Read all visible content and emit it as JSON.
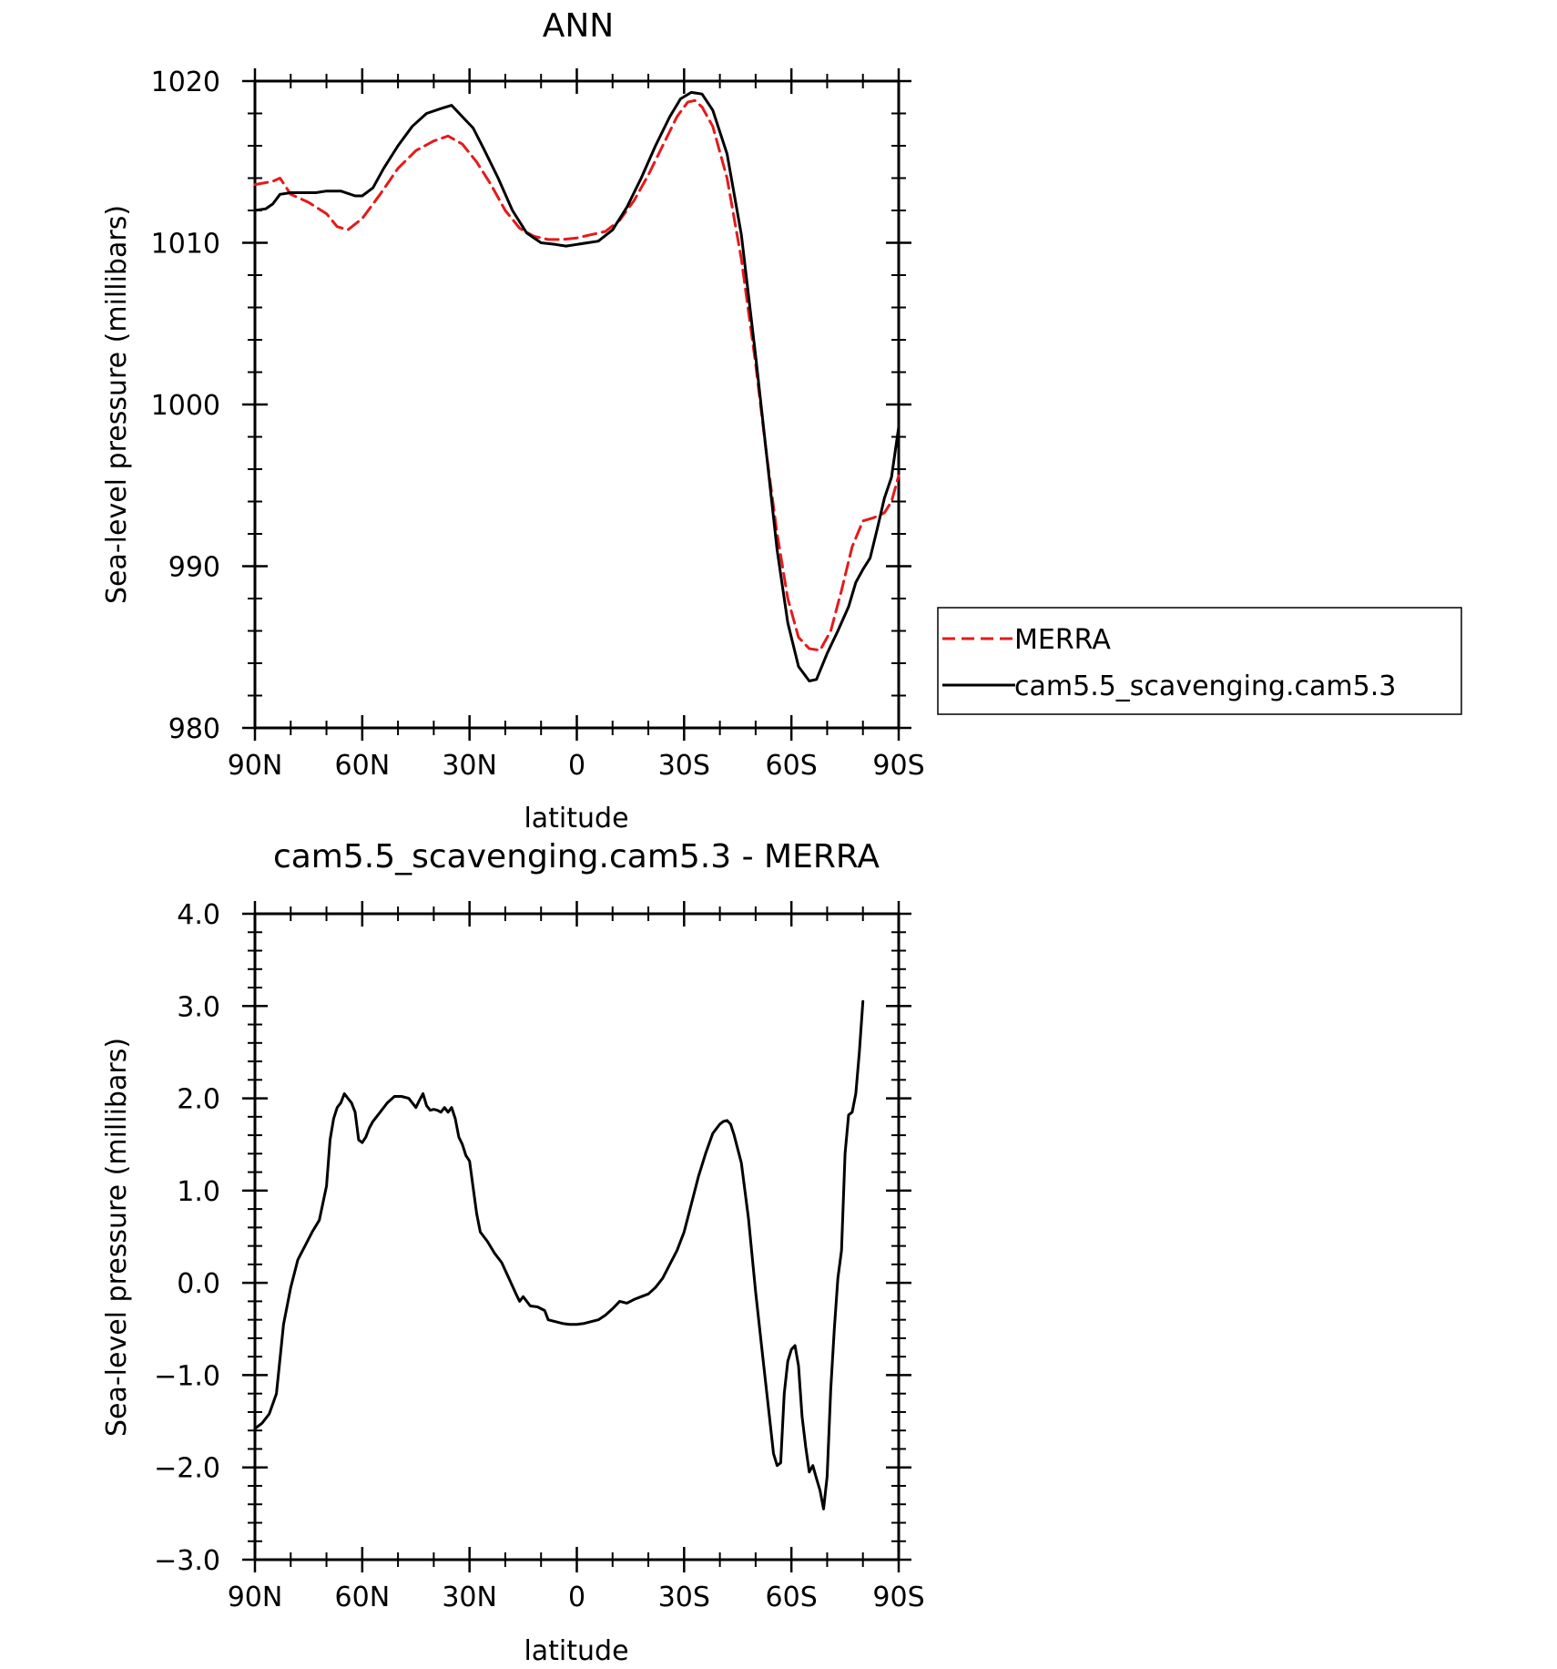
{
  "chart_data": [
    {
      "type": "line",
      "title": "ANN",
      "xlabel": "latitude",
      "ylabel": "Sea-level pressure (millibars)",
      "xlim": [
        90,
        -90
      ],
      "ylim": [
        980,
        1020
      ],
      "xticks": [
        {
          "value": 90,
          "label": "90N"
        },
        {
          "value": 60,
          "label": "60N"
        },
        {
          "value": 30,
          "label": "30N"
        },
        {
          "value": 0,
          "label": "0"
        },
        {
          "value": -30,
          "label": "30S"
        },
        {
          "value": -60,
          "label": "60S"
        },
        {
          "value": -90,
          "label": "90S"
        }
      ],
      "yticks": [
        {
          "value": 1020,
          "label": "1020"
        },
        {
          "value": 1010,
          "label": "1010"
        },
        {
          "value": 1000,
          "label": "1000"
        },
        {
          "value": 990,
          "label": "990"
        },
        {
          "value": 980,
          "label": "980"
        }
      ],
      "legend": {
        "position": "right",
        "entries": [
          "MERRA",
          "cam5.5_scavenging.cam5.3"
        ]
      },
      "series": [
        {
          "name": "MERRA",
          "color": "#e41a1c",
          "dash": "dashed",
          "points": [
            [
              90,
              1013.6
            ],
            [
              85,
              1013.8
            ],
            [
              83,
              1014.0
            ],
            [
              80,
              1013.0
            ],
            [
              75,
              1012.5
            ],
            [
              70,
              1011.8
            ],
            [
              67,
              1011.0
            ],
            [
              64,
              1010.8
            ],
            [
              60,
              1011.5
            ],
            [
              55,
              1013.0
            ],
            [
              50,
              1014.6
            ],
            [
              45,
              1015.7
            ],
            [
              40,
              1016.3
            ],
            [
              36,
              1016.6
            ],
            [
              32,
              1016.1
            ],
            [
              28,
              1015.0
            ],
            [
              24,
              1013.6
            ],
            [
              20,
              1012.0
            ],
            [
              16,
              1010.9
            ],
            [
              12,
              1010.4
            ],
            [
              8,
              1010.2
            ],
            [
              4,
              1010.2
            ],
            [
              0,
              1010.3
            ],
            [
              -4,
              1010.5
            ],
            [
              -8,
              1010.7
            ],
            [
              -12,
              1011.4
            ],
            [
              -16,
              1012.6
            ],
            [
              -20,
              1014.2
            ],
            [
              -24,
              1016.0
            ],
            [
              -28,
              1017.8
            ],
            [
              -31,
              1018.7
            ],
            [
              -33,
              1018.8
            ],
            [
              -35,
              1018.4
            ],
            [
              -38,
              1017.2
            ],
            [
              -42,
              1014.0
            ],
            [
              -46,
              1009.0
            ],
            [
              -50,
              1002.5
            ],
            [
              -53,
              997.0
            ],
            [
              -56,
              992.0
            ],
            [
              -59,
              988.0
            ],
            [
              -62,
              985.6
            ],
            [
              -65,
              984.9
            ],
            [
              -68,
              984.8
            ],
            [
              -71,
              986.0
            ],
            [
              -74,
              988.5
            ],
            [
              -77,
              991.2
            ],
            [
              -80,
              992.8
            ],
            [
              -83,
              993.0
            ],
            [
              -86,
              993.3
            ],
            [
              -88,
              994.0
            ],
            [
              -90,
              995.6
            ]
          ]
        },
        {
          "name": "cam5.5_scavenging.cam5.3",
          "color": "#000000",
          "dash": "solid",
          "points": [
            [
              90,
              1012.0
            ],
            [
              87,
              1012.1
            ],
            [
              85,
              1012.4
            ],
            [
              83,
              1013.0
            ],
            [
              80,
              1013.1
            ],
            [
              77,
              1013.1
            ],
            [
              73,
              1013.1
            ],
            [
              70,
              1013.2
            ],
            [
              66,
              1013.2
            ],
            [
              62,
              1012.9
            ],
            [
              60,
              1012.9
            ],
            [
              57,
              1013.4
            ],
            [
              54,
              1014.6
            ],
            [
              50,
              1016.0
            ],
            [
              46,
              1017.2
            ],
            [
              42,
              1018.0
            ],
            [
              38,
              1018.3
            ],
            [
              35,
              1018.5
            ],
            [
              32,
              1017.8
            ],
            [
              29,
              1017.1
            ],
            [
              26,
              1015.8
            ],
            [
              22,
              1014.0
            ],
            [
              18,
              1012.0
            ],
            [
              14,
              1010.6
            ],
            [
              10,
              1010.0
            ],
            [
              6,
              1009.9
            ],
            [
              3,
              1009.8
            ],
            [
              0,
              1009.9
            ],
            [
              -3,
              1010.0
            ],
            [
              -6,
              1010.1
            ],
            [
              -10,
              1010.8
            ],
            [
              -14,
              1012.2
            ],
            [
              -18,
              1014.0
            ],
            [
              -22,
              1016.0
            ],
            [
              -26,
              1017.8
            ],
            [
              -29,
              1018.9
            ],
            [
              -32,
              1019.3
            ],
            [
              -35,
              1019.2
            ],
            [
              -38,
              1018.2
            ],
            [
              -42,
              1015.5
            ],
            [
              -46,
              1010.5
            ],
            [
              -50,
              1003.0
            ],
            [
              -53,
              997.0
            ],
            [
              -56,
              991.0
            ],
            [
              -59,
              986.5
            ],
            [
              -62,
              983.8
            ],
            [
              -65,
              982.9
            ],
            [
              -67,
              983.0
            ],
            [
              -70,
              984.6
            ],
            [
              -73,
              986.0
            ],
            [
              -76,
              987.5
            ],
            [
              -78,
              989.0
            ],
            [
              -80,
              989.8
            ],
            [
              -82,
              990.5
            ],
            [
              -84,
              992.3
            ],
            [
              -86,
              994.2
            ],
            [
              -88,
              995.5
            ],
            [
              -90,
              998.6
            ]
          ]
        }
      ]
    },
    {
      "type": "line",
      "title": "cam5.5_scavenging.cam5.3 - MERRA",
      "xlabel": "latitude",
      "ylabel": "Sea-level pressure (millibars)",
      "xlim": [
        90,
        -90
      ],
      "ylim": [
        -3.0,
        4.0
      ],
      "xticks": [
        {
          "value": 90,
          "label": "90N"
        },
        {
          "value": 60,
          "label": "60N"
        },
        {
          "value": 30,
          "label": "30N"
        },
        {
          "value": 0,
          "label": "0"
        },
        {
          "value": -30,
          "label": "30S"
        },
        {
          "value": -60,
          "label": "60S"
        },
        {
          "value": -90,
          "label": "90S"
        }
      ],
      "yticks": [
        {
          "value": 4.0,
          "label": "4.0"
        },
        {
          "value": 3.0,
          "label": "3.0"
        },
        {
          "value": 2.0,
          "label": "2.0"
        },
        {
          "value": 1.0,
          "label": "1.0"
        },
        {
          "value": 0.0,
          "label": "0.0"
        },
        {
          "value": -1.0,
          "label": "−1.0"
        },
        {
          "value": -2.0,
          "label": "−2.0"
        },
        {
          "value": -3.0,
          "label": "−3.0"
        }
      ],
      "series": [
        {
          "color": "#000000",
          "dash": "solid",
          "points": [
            [
              90,
              -1.58
            ],
            [
              88,
              -1.52
            ],
            [
              86,
              -1.42
            ],
            [
              84,
              -1.2
            ],
            [
              82,
              -0.45
            ],
            [
              80,
              -0.05
            ],
            [
              78,
              0.25
            ],
            [
              76,
              0.4
            ],
            [
              74,
              0.55
            ],
            [
              72,
              0.68
            ],
            [
              70,
              1.05
            ],
            [
              69,
              1.55
            ],
            [
              68,
              1.78
            ],
            [
              67,
              1.9
            ],
            [
              66,
              1.95
            ],
            [
              65,
              2.05
            ],
            [
              64,
              2.0
            ],
            [
              63,
              1.95
            ],
            [
              62,
              1.85
            ],
            [
              61,
              1.55
            ],
            [
              60,
              1.52
            ],
            [
              59,
              1.58
            ],
            [
              58,
              1.68
            ],
            [
              57,
              1.75
            ],
            [
              55,
              1.85
            ],
            [
              53,
              1.95
            ],
            [
              51,
              2.02
            ],
            [
              49,
              2.02
            ],
            [
              47,
              2.0
            ],
            [
              45,
              1.9
            ],
            [
              44,
              1.98
            ],
            [
              43,
              2.05
            ],
            [
              42,
              1.92
            ],
            [
              41,
              1.87
            ],
            [
              40,
              1.88
            ],
            [
              39,
              1.87
            ],
            [
              38,
              1.85
            ],
            [
              37,
              1.9
            ],
            [
              36,
              1.85
            ],
            [
              35,
              1.9
            ],
            [
              34,
              1.78
            ],
            [
              33,
              1.58
            ],
            [
              32,
              1.5
            ],
            [
              31,
              1.38
            ],
            [
              30,
              1.32
            ],
            [
              28,
              0.75
            ],
            [
              27,
              0.55
            ],
            [
              25,
              0.45
            ],
            [
              23,
              0.32
            ],
            [
              21,
              0.22
            ],
            [
              19,
              0.05
            ],
            [
              17,
              -0.12
            ],
            [
              16,
              -0.2
            ],
            [
              15,
              -0.15
            ],
            [
              13,
              -0.25
            ],
            [
              11,
              -0.26
            ],
            [
              9,
              -0.3
            ],
            [
              8,
              -0.4
            ],
            [
              6,
              -0.42
            ],
            [
              4,
              -0.44
            ],
            [
              2,
              -0.45
            ],
            [
              0,
              -0.45
            ],
            [
              -2,
              -0.44
            ],
            [
              -4,
              -0.42
            ],
            [
              -6,
              -0.4
            ],
            [
              -8,
              -0.35
            ],
            [
              -10,
              -0.28
            ],
            [
              -12,
              -0.2
            ],
            [
              -14,
              -0.22
            ],
            [
              -16,
              -0.18
            ],
            [
              -18,
              -0.15
            ],
            [
              -20,
              -0.12
            ],
            [
              -22,
              -0.05
            ],
            [
              -24,
              0.05
            ],
            [
              -26,
              0.2
            ],
            [
              -28,
              0.35
            ],
            [
              -30,
              0.55
            ],
            [
              -32,
              0.85
            ],
            [
              -34,
              1.15
            ],
            [
              -36,
              1.4
            ],
            [
              -38,
              1.62
            ],
            [
              -40,
              1.72
            ],
            [
              -41,
              1.75
            ],
            [
              -42,
              1.76
            ],
            [
              -43,
              1.72
            ],
            [
              -44,
              1.6
            ],
            [
              -46,
              1.3
            ],
            [
              -48,
              0.7
            ],
            [
              -50,
              -0.1
            ],
            [
              -52,
              -0.8
            ],
            [
              -54,
              -1.5
            ],
            [
              -55,
              -1.85
            ],
            [
              -56,
              -1.98
            ],
            [
              -57,
              -1.95
            ],
            [
              -58,
              -1.2
            ],
            [
              -59,
              -0.85
            ],
            [
              -60,
              -0.72
            ],
            [
              -61,
              -0.68
            ],
            [
              -62,
              -0.9
            ],
            [
              -63,
              -1.45
            ],
            [
              -64,
              -1.78
            ],
            [
              -65,
              -2.05
            ],
            [
              -66,
              -1.98
            ],
            [
              -67,
              -2.12
            ],
            [
              -68,
              -2.25
            ],
            [
              -69,
              -2.45
            ],
            [
              -70,
              -2.1
            ],
            [
              -71,
              -1.15
            ],
            [
              -72,
              -0.5
            ],
            [
              -73,
              0.05
            ],
            [
              -74,
              0.35
            ],
            [
              -75,
              1.4
            ],
            [
              -76,
              1.82
            ],
            [
              -77,
              1.85
            ],
            [
              -78,
              2.05
            ],
            [
              -79,
              2.5
            ],
            [
              -80,
              3.05
            ]
          ]
        }
      ]
    }
  ]
}
